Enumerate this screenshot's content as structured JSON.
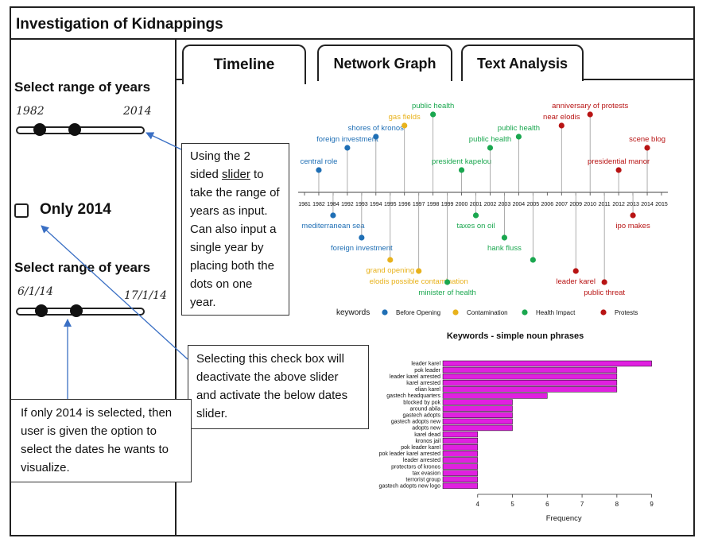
{
  "app": {
    "title": "Investigation of Kidnappings"
  },
  "tabs": [
    {
      "label": "Timeline",
      "active": true
    },
    {
      "label": "Network Graph",
      "active": false
    },
    {
      "label": "Text Analysis",
      "active": false
    }
  ],
  "sidebar": {
    "year_range": {
      "heading": "Select range of years",
      "min_label": "1982",
      "max_label": "2014"
    },
    "only_2014": {
      "label": "Only 2014",
      "checked": false
    },
    "date_range": {
      "heading": "Select range of years",
      "min_label": "6/1/14",
      "max_label": "17/1/14"
    }
  },
  "annotations": {
    "slider_note": {
      "before": "Using the 2 sided ",
      "link": "slider",
      "after": " to take the range of years as input. Can also input a single year by placing both the dots on one year."
    },
    "checkbox_note": "Selecting this check box will deactivate the above slider and activate the below dates slider.",
    "dates_note": "If only 2014 is selected, then user is given the option to select the dates he wants to visualize."
  },
  "colors": {
    "Before Opening": "#1f6fb5",
    "Contamination": "#e8b21c",
    "Health Impact": "#1aa74f",
    "Protests": "#b81414",
    "bar": "#e020e0"
  },
  "timeline": {
    "years": [
      "1981",
      "1982",
      "1984",
      "1992",
      "1993",
      "1994",
      "1995",
      "1996",
      "1997",
      "1998",
      "1999",
      "2000",
      "2001",
      "2002",
      "2003",
      "2004",
      "2005",
      "2006",
      "2007",
      "2009",
      "2010",
      "2011",
      "2012",
      "2013",
      "2014",
      "2015"
    ],
    "legend_title": "keywords",
    "legend": [
      "Before Opening",
      "Contamination",
      "Health Impact",
      "Protests"
    ],
    "events": [
      {
        "label": "central role",
        "year": "1982",
        "category": "Before Opening",
        "side": "above",
        "level": 1
      },
      {
        "label": "foreign investment",
        "year": "1992",
        "category": "Before Opening",
        "side": "above",
        "level": 2
      },
      {
        "label": "shores of kronos",
        "year": "1994",
        "category": "Before Opening",
        "side": "above",
        "level": 3
      },
      {
        "label": "gas fields",
        "year": "1996",
        "category": "Contamination",
        "side": "above",
        "level": 4
      },
      {
        "label": "public health",
        "year": "1998",
        "category": "Health Impact",
        "side": "above",
        "level": 5
      },
      {
        "label": "president kapelou",
        "year": "2000",
        "category": "Health Impact",
        "side": "above",
        "level": 1
      },
      {
        "label": "public health",
        "year": "2002",
        "category": "Health Impact",
        "side": "above",
        "level": 2
      },
      {
        "label": "public health",
        "year": "2004",
        "category": "Health Impact",
        "side": "above",
        "level": 3
      },
      {
        "label": "near elodis",
        "year": "2007",
        "category": "Protests",
        "side": "above",
        "level": 4
      },
      {
        "label": "anniversary of protests",
        "year": "2010",
        "category": "Protests",
        "side": "above",
        "level": 5
      },
      {
        "label": "presidential manor",
        "year": "2012",
        "category": "Protests",
        "side": "above",
        "level": 1
      },
      {
        "label": "scene blog",
        "year": "2014",
        "category": "Protests",
        "side": "above",
        "level": 2
      },
      {
        "label": "mediterranean sea",
        "year": "1984",
        "category": "Before Opening",
        "side": "below",
        "level": 1
      },
      {
        "label": "foreign investment",
        "year": "1993",
        "category": "Before Opening",
        "side": "below",
        "level": 2
      },
      {
        "label": "grand opening",
        "year": "1995",
        "category": "Contamination",
        "side": "below",
        "level": 3
      },
      {
        "label": "elodis possible contamination",
        "year": "1997",
        "category": "Contamination",
        "side": "below",
        "level": 4
      },
      {
        "label": "minister of health",
        "year": "1999",
        "category": "Health Impact",
        "side": "below",
        "level": 5
      },
      {
        "label": "taxes on oil",
        "year": "2001",
        "category": "Health Impact",
        "side": "below",
        "level": 1
      },
      {
        "label": "hank fluss",
        "year": "2003",
        "category": "Health Impact",
        "side": "below",
        "level": 2
      },
      {
        "label": "leader karel",
        "year": "2009",
        "category": "Protests",
        "side": "below",
        "level": 4
      },
      {
        "label": "public threat",
        "year": "2011",
        "category": "Protests",
        "side": "below",
        "level": 5
      },
      {
        "label": "ipo makes",
        "year": "2013",
        "category": "Protests",
        "side": "below",
        "level": 1
      },
      {
        "label": "",
        "year": "2005",
        "category": "Health Impact",
        "side": "below",
        "level": 3
      }
    ]
  },
  "chart_data": {
    "type": "bar",
    "orientation": "horizontal",
    "title": "Keywords - simple noun phrases",
    "xlabel": "Frequency",
    "ylabel": "",
    "categories": [
      "leader karel",
      "pok leader",
      "leader karel arrested",
      "karel arrested",
      "elian karel",
      "gastech headquarters",
      "blocked by pok",
      "around abila",
      "gastech adopts",
      "gastech adopts new",
      "adopts new",
      "karel dead",
      "kronos jail",
      "pok leader karel",
      "pok leader karel arrested",
      "leader arrested",
      "protectors of kronos",
      "tax evasion",
      "terrorist group",
      "gastech adopts new logo"
    ],
    "values": [
      9,
      8,
      8,
      8,
      8,
      6,
      5,
      5,
      5,
      5,
      5,
      4,
      4,
      4,
      4,
      4,
      4,
      4,
      4,
      4
    ],
    "xticks": [
      4,
      5,
      6,
      7,
      8,
      9
    ],
    "xlim": [
      3,
      9.1
    ],
    "grid": false
  }
}
